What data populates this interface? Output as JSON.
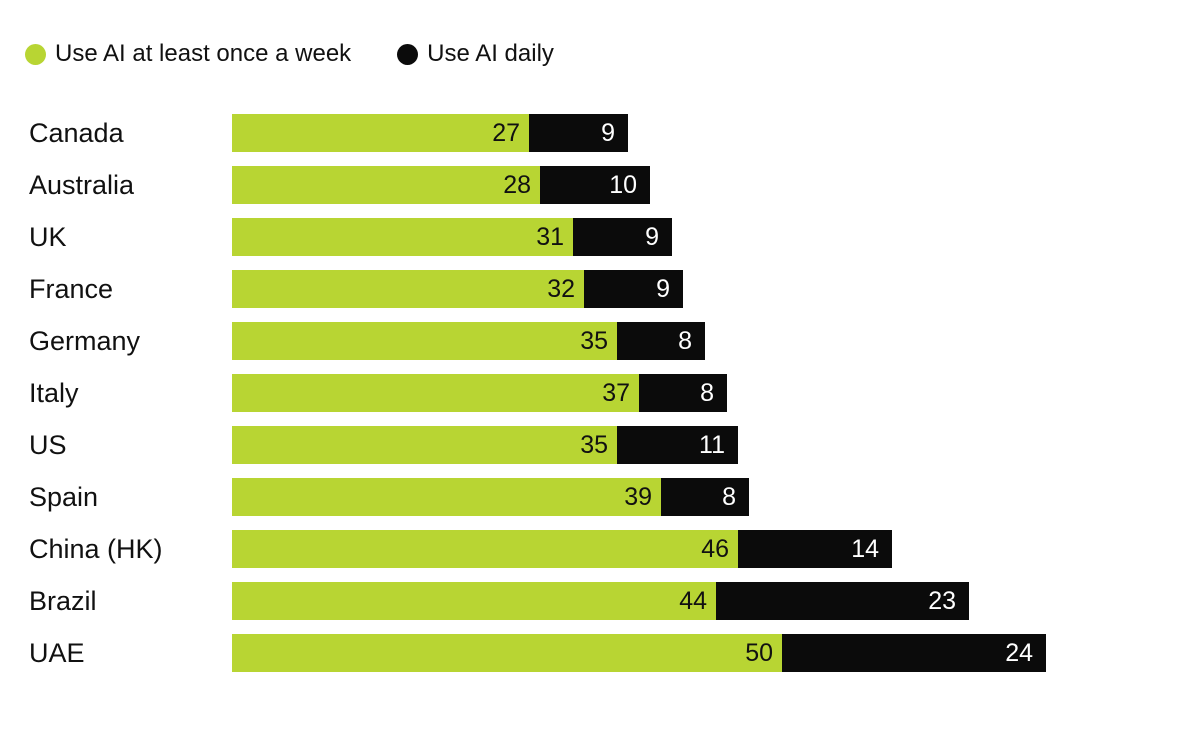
{
  "legend": [
    {
      "label": "Use AI at least once a week",
      "color": "#b8d533"
    },
    {
      "label": "Use AI daily",
      "color": "#0b0b0b"
    }
  ],
  "chart_data": {
    "type": "bar",
    "orientation": "horizontal",
    "stacked": true,
    "title": "",
    "xlabel": "",
    "ylabel": "",
    "categories": [
      "Canada",
      "Australia",
      "UK",
      "France",
      "Germany",
      "Italy",
      "US",
      "Spain",
      "China (HK)",
      "Brazil",
      "UAE"
    ],
    "series": [
      {
        "name": "Use AI at least once a week",
        "color": "#b8d533",
        "values": [
          27,
          28,
          31,
          32,
          35,
          37,
          35,
          39,
          46,
          44,
          50
        ]
      },
      {
        "name": "Use AI daily",
        "color": "#0b0b0b",
        "values": [
          9,
          10,
          9,
          9,
          8,
          8,
          11,
          8,
          14,
          23,
          24
        ]
      }
    ],
    "value_labels": "inside-end",
    "xlim": [
      0,
      76
    ],
    "grid": false,
    "axes_visible": false,
    "legend_position": "top-left"
  }
}
